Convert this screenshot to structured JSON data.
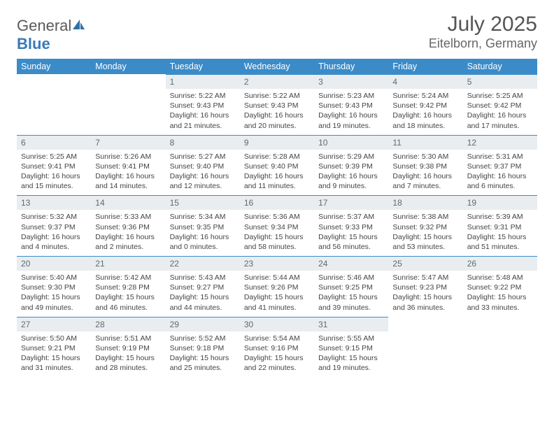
{
  "brand": {
    "name_gray": "General",
    "name_blue": "Blue"
  },
  "title": {
    "month": "July 2025",
    "location": "Eitelborn, Germany"
  },
  "colors": {
    "header_bg": "#3b8bc9",
    "header_text": "#ffffff",
    "daynum_bg": "#e9edf0",
    "daynum_border": "#3b8bc9",
    "body_text": "#444444"
  },
  "weekdays": [
    "Sunday",
    "Monday",
    "Tuesday",
    "Wednesday",
    "Thursday",
    "Friday",
    "Saturday"
  ],
  "weeks": [
    [
      null,
      null,
      {
        "n": "1",
        "sr": "5:22 AM",
        "ss": "9:43 PM",
        "dl": "16 hours and 21 minutes."
      },
      {
        "n": "2",
        "sr": "5:22 AM",
        "ss": "9:43 PM",
        "dl": "16 hours and 20 minutes."
      },
      {
        "n": "3",
        "sr": "5:23 AM",
        "ss": "9:43 PM",
        "dl": "16 hours and 19 minutes."
      },
      {
        "n": "4",
        "sr": "5:24 AM",
        "ss": "9:42 PM",
        "dl": "16 hours and 18 minutes."
      },
      {
        "n": "5",
        "sr": "5:25 AM",
        "ss": "9:42 PM",
        "dl": "16 hours and 17 minutes."
      }
    ],
    [
      {
        "n": "6",
        "sr": "5:25 AM",
        "ss": "9:41 PM",
        "dl": "16 hours and 15 minutes."
      },
      {
        "n": "7",
        "sr": "5:26 AM",
        "ss": "9:41 PM",
        "dl": "16 hours and 14 minutes."
      },
      {
        "n": "8",
        "sr": "5:27 AM",
        "ss": "9:40 PM",
        "dl": "16 hours and 12 minutes."
      },
      {
        "n": "9",
        "sr": "5:28 AM",
        "ss": "9:40 PM",
        "dl": "16 hours and 11 minutes."
      },
      {
        "n": "10",
        "sr": "5:29 AM",
        "ss": "9:39 PM",
        "dl": "16 hours and 9 minutes."
      },
      {
        "n": "11",
        "sr": "5:30 AM",
        "ss": "9:38 PM",
        "dl": "16 hours and 7 minutes."
      },
      {
        "n": "12",
        "sr": "5:31 AM",
        "ss": "9:37 PM",
        "dl": "16 hours and 6 minutes."
      }
    ],
    [
      {
        "n": "13",
        "sr": "5:32 AM",
        "ss": "9:37 PM",
        "dl": "16 hours and 4 minutes."
      },
      {
        "n": "14",
        "sr": "5:33 AM",
        "ss": "9:36 PM",
        "dl": "16 hours and 2 minutes."
      },
      {
        "n": "15",
        "sr": "5:34 AM",
        "ss": "9:35 PM",
        "dl": "16 hours and 0 minutes."
      },
      {
        "n": "16",
        "sr": "5:36 AM",
        "ss": "9:34 PM",
        "dl": "15 hours and 58 minutes."
      },
      {
        "n": "17",
        "sr": "5:37 AM",
        "ss": "9:33 PM",
        "dl": "15 hours and 56 minutes."
      },
      {
        "n": "18",
        "sr": "5:38 AM",
        "ss": "9:32 PM",
        "dl": "15 hours and 53 minutes."
      },
      {
        "n": "19",
        "sr": "5:39 AM",
        "ss": "9:31 PM",
        "dl": "15 hours and 51 minutes."
      }
    ],
    [
      {
        "n": "20",
        "sr": "5:40 AM",
        "ss": "9:30 PM",
        "dl": "15 hours and 49 minutes."
      },
      {
        "n": "21",
        "sr": "5:42 AM",
        "ss": "9:28 PM",
        "dl": "15 hours and 46 minutes."
      },
      {
        "n": "22",
        "sr": "5:43 AM",
        "ss": "9:27 PM",
        "dl": "15 hours and 44 minutes."
      },
      {
        "n": "23",
        "sr": "5:44 AM",
        "ss": "9:26 PM",
        "dl": "15 hours and 41 minutes."
      },
      {
        "n": "24",
        "sr": "5:46 AM",
        "ss": "9:25 PM",
        "dl": "15 hours and 39 minutes."
      },
      {
        "n": "25",
        "sr": "5:47 AM",
        "ss": "9:23 PM",
        "dl": "15 hours and 36 minutes."
      },
      {
        "n": "26",
        "sr": "5:48 AM",
        "ss": "9:22 PM",
        "dl": "15 hours and 33 minutes."
      }
    ],
    [
      {
        "n": "27",
        "sr": "5:50 AM",
        "ss": "9:21 PM",
        "dl": "15 hours and 31 minutes."
      },
      {
        "n": "28",
        "sr": "5:51 AM",
        "ss": "9:19 PM",
        "dl": "15 hours and 28 minutes."
      },
      {
        "n": "29",
        "sr": "5:52 AM",
        "ss": "9:18 PM",
        "dl": "15 hours and 25 minutes."
      },
      {
        "n": "30",
        "sr": "5:54 AM",
        "ss": "9:16 PM",
        "dl": "15 hours and 22 minutes."
      },
      {
        "n": "31",
        "sr": "5:55 AM",
        "ss": "9:15 PM",
        "dl": "15 hours and 19 minutes."
      },
      null,
      null
    ]
  ],
  "labels": {
    "sunrise": "Sunrise: ",
    "sunset": "Sunset: ",
    "daylight": "Daylight: "
  }
}
